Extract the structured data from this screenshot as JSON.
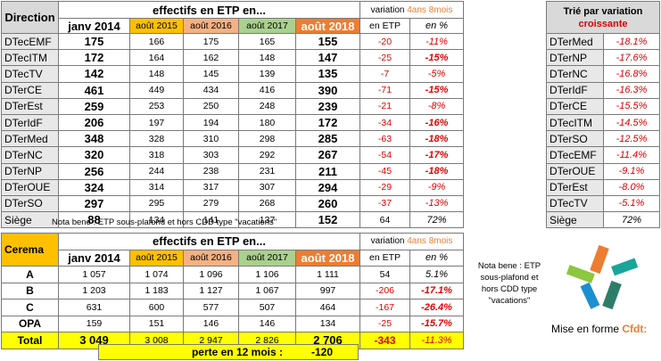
{
  "main": {
    "col_direction": "Direction",
    "title_effectifs": "effectifs en ETP en...",
    "title_variation": "variation",
    "variation_period": "4ans 8mois",
    "years": [
      "janv 2014",
      "août 2015",
      "août 2016",
      "août 2017",
      "août 2018"
    ],
    "col_etp": "en ETP",
    "col_pct": "en %",
    "rows": [
      {
        "name": "DTecEMF",
        "v": [
          "175",
          "166",
          "175",
          "165",
          "155"
        ],
        "etp": "-20",
        "pct": "-11%"
      },
      {
        "name": "DTecITM",
        "v": [
          "172",
          "164",
          "162",
          "148",
          "147"
        ],
        "etp": "-25",
        "pct": "-15%"
      },
      {
        "name": "DTecTV",
        "v": [
          "142",
          "148",
          "145",
          "139",
          "135"
        ],
        "etp": "-7",
        "pct": "-5%"
      },
      {
        "name": "DTerCE",
        "v": [
          "461",
          "449",
          "434",
          "416",
          "390"
        ],
        "etp": "-71",
        "pct": "-15%"
      },
      {
        "name": "DTerEst",
        "v": [
          "259",
          "253",
          "250",
          "248",
          "239"
        ],
        "etp": "-21",
        "pct": "-8%"
      },
      {
        "name": "DTerIdF",
        "v": [
          "206",
          "197",
          "194",
          "180",
          "172"
        ],
        "etp": "-34",
        "pct": "-16%"
      },
      {
        "name": "DTerMed",
        "v": [
          "348",
          "328",
          "310",
          "298",
          "285"
        ],
        "etp": "-63",
        "pct": "-18%"
      },
      {
        "name": "DTerNC",
        "v": [
          "320",
          "318",
          "303",
          "292",
          "267"
        ],
        "etp": "-54",
        "pct": "-17%"
      },
      {
        "name": "DTerNP",
        "v": [
          "256",
          "244",
          "238",
          "231",
          "211"
        ],
        "etp": "-45",
        "pct": "-18%"
      },
      {
        "name": "DTerOUE",
        "v": [
          "324",
          "314",
          "317",
          "307",
          "294"
        ],
        "etp": "-29",
        "pct": "-9%"
      },
      {
        "name": "DTerSO",
        "v": [
          "297",
          "295",
          "279",
          "268",
          "260"
        ],
        "etp": "-37",
        "pct": "-13%"
      },
      {
        "name": "Siège",
        "v": [
          "88",
          "134",
          "141",
          "137",
          "152"
        ],
        "etp": "64",
        "pct": "72%"
      }
    ]
  },
  "sorted": {
    "title_line1": "Trié par variation",
    "title_line2": "croissante",
    "rows": [
      {
        "name": "DTerMed",
        "pct": "-18.1%"
      },
      {
        "name": "DTerNP",
        "pct": "-17.6%"
      },
      {
        "name": "DTerNC",
        "pct": "-16.8%"
      },
      {
        "name": "DTerIdF",
        "pct": "-16.3%"
      },
      {
        "name": "DTerCE",
        "pct": "-15.5%"
      },
      {
        "name": "DTecITM",
        "pct": "-14.5%"
      },
      {
        "name": "DTerSO",
        "pct": "-12.5%"
      },
      {
        "name": "DTecEMF",
        "pct": "-11.4%"
      },
      {
        "name": "DTerOUE",
        "pct": "-9.1%"
      },
      {
        "name": "DTerEst",
        "pct": "-8.0%"
      },
      {
        "name": "DTecTV",
        "pct": "-5.1%"
      },
      {
        "name": "Siège",
        "pct": "72%"
      }
    ]
  },
  "note1": "Nota bene : ETP sous-plafond et hors CDD type \"vacations\"",
  "cerema": {
    "col_name": "Cerema",
    "title_effectifs": "effectifs en ETP en...",
    "title_variation": "variation",
    "variation_period": "4ans 8mois",
    "years": [
      "janv 2014",
      "août 2015",
      "août 2016",
      "août 2017",
      "août 2018"
    ],
    "col_etp": "en ETP",
    "col_pct": "en %",
    "rows": [
      {
        "name": "A",
        "v": [
          "1 057",
          "1 074",
          "1 096",
          "1 106",
          "1 111"
        ],
        "etp": "54",
        "pct": "5.1%"
      },
      {
        "name": "B",
        "v": [
          "1 203",
          "1 183",
          "1 127",
          "1 067",
          "997"
        ],
        "etp": "-206",
        "pct": "-17.1%"
      },
      {
        "name": "C",
        "v": [
          "631",
          "600",
          "577",
          "507",
          "464"
        ],
        "etp": "-167",
        "pct": "-26.4%"
      },
      {
        "name": "OPA",
        "v": [
          "159",
          "151",
          "146",
          "146",
          "134"
        ],
        "etp": "-25",
        "pct": "-15.7%"
      }
    ],
    "total": {
      "name": "Total",
      "v": [
        "3 049",
        "3 008",
        "2 947",
        "2 826",
        "2 706"
      ],
      "etp": "-343",
      "pct": "-11.3%"
    }
  },
  "perte": {
    "label": "perte en 12 mois :",
    "value": "-120"
  },
  "note2": "Nota bene : ETP sous-plafond et hors CDD type \"vacations\"",
  "credit": {
    "prefix": "Mise en forme",
    "brand": "Cfdt:"
  },
  "colors": {
    "accent_orange": "#ed7d31",
    "gold": "#ffc000",
    "salmon": "#f4b183",
    "green": "#a9d08e",
    "yellow": "#ffff00",
    "red": "#e00000"
  }
}
